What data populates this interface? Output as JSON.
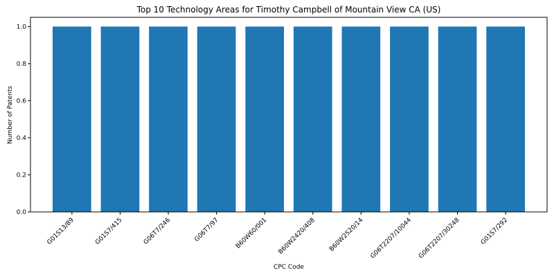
{
  "chart_data": {
    "type": "bar",
    "title": "Top 10 Technology Areas for Timothy Campbell of Mountain View CA (US)",
    "xlabel": "CPC Code",
    "ylabel": "Number of Patents",
    "categories": [
      "G01S13/89",
      "G01S7/415",
      "G06T7/246",
      "G06T7/97",
      "B60W60/001",
      "B60W2420/408",
      "B60W2520/14",
      "G06T2207/10044",
      "G06T2207/30248",
      "G01S7/292"
    ],
    "values": [
      1,
      1,
      1,
      1,
      1,
      1,
      1,
      1,
      1,
      1
    ],
    "ylim": [
      0,
      1.05
    ],
    "yticks": [
      0.0,
      0.2,
      0.4,
      0.6,
      0.8,
      1.0
    ],
    "grid": false,
    "bar_color": "#1f77b4"
  }
}
